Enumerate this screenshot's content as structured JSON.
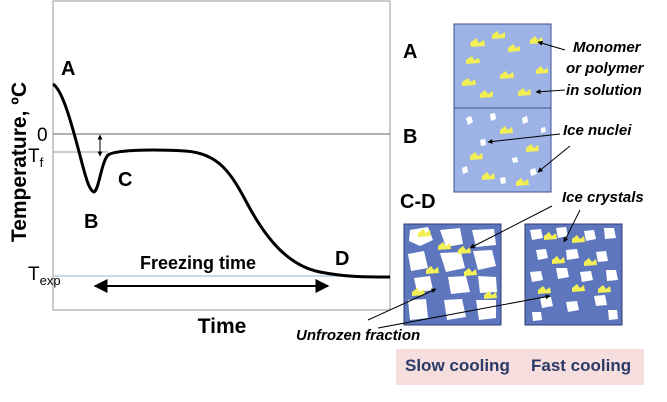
{
  "graph": {
    "y_axis_label": "Temperature, ºC",
    "x_axis_label": "Time",
    "zero_label": "0",
    "tf_label": "T",
    "tf_sub": "f",
    "texp_label": "T",
    "texp_sub": "exp",
    "point_A": "A",
    "point_B": "B",
    "point_C": "C",
    "point_D": "D",
    "freezing_time_label": "Freezing time"
  },
  "panels": {
    "label_A": "A",
    "label_B": "B",
    "label_CD": "C-D",
    "monomer_line1": "Monomer",
    "monomer_line2": "or polymer",
    "monomer_line3": "in solution",
    "ice_nuclei": "Ice nuclei",
    "ice_crystals": "Ice crystals",
    "unfrozen_fraction": "Unfrozen fraction",
    "slow_cooling": "Slow cooling",
    "fast_cooling": "Fast cooling"
  },
  "colors": {
    "panel_light_blue": "#9db3e6",
    "panel_dark_blue": "#5d76bd",
    "monomer_yellow": "#f2ee55",
    "ice_white": "#ffffff",
    "cooling_label_bg": "#f6dede"
  }
}
